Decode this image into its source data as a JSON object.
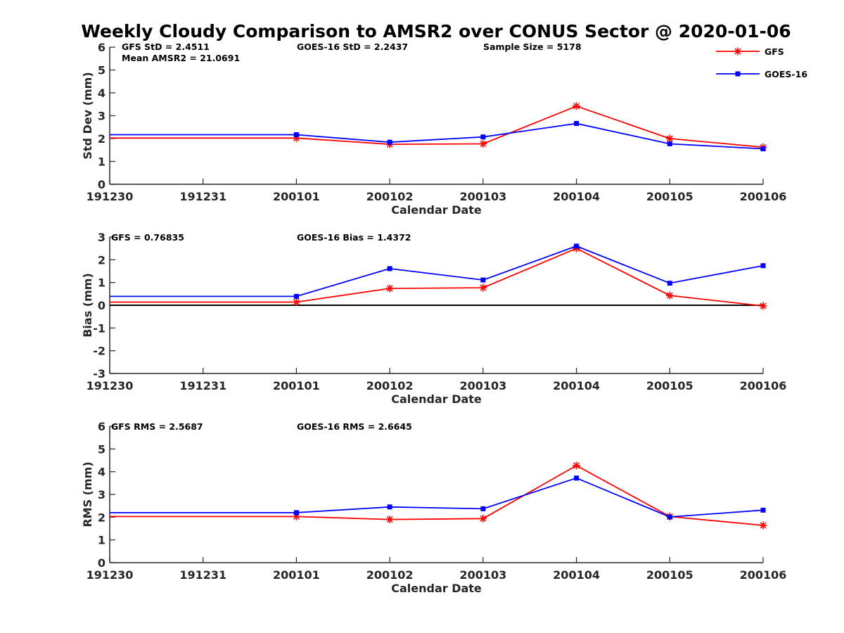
{
  "title": "Weekly Cloudy Comparison to AMSR2 over CONUS Sector @ 2020-01-06",
  "legend": {
    "position": "top-right",
    "items": [
      {
        "label": "GFS",
        "color": "#ff0000",
        "marker": "asterisk"
      },
      {
        "label": "GOES-16",
        "color": "#0000ff",
        "marker": "square"
      }
    ]
  },
  "chart_data": [
    {
      "type": "line",
      "ylabel": "Std Dev (mm)",
      "xlabel": "Calendar Date",
      "categories": [
        "191230",
        "191231",
        "200101",
        "200102",
        "200103",
        "200104",
        "200105",
        "200106"
      ],
      "ylim": [
        0,
        6
      ],
      "yticks": [
        "0",
        "1",
        "2",
        "3",
        "4",
        "5",
        "6"
      ],
      "annotations": [
        "GFS StD = 2.4511",
        "GOES-16 StD = 2.2437",
        "Sample Size = 5178",
        "Mean AMSR2 = 21.0691"
      ],
      "series": [
        {
          "name": "GFS",
          "color": "#ff0000",
          "x": [
            191230,
            200101,
            200102,
            200103,
            200104,
            200105,
            200106
          ],
          "values": [
            2.02,
            2.02,
            1.75,
            1.77,
            3.42,
            2.0,
            1.62
          ]
        },
        {
          "name": "GOES-16",
          "color": "#0000ff",
          "x": [
            191230,
            200101,
            200102,
            200103,
            200104,
            200105,
            200106
          ],
          "values": [
            2.17,
            2.17,
            1.84,
            2.07,
            2.66,
            1.77,
            1.55
          ]
        }
      ]
    },
    {
      "type": "line",
      "ylabel": "Bias (mm)",
      "xlabel": "Calendar Date",
      "categories": [
        "191230",
        "191231",
        "200101",
        "200102",
        "200103",
        "200104",
        "200105",
        "200106"
      ],
      "ylim": [
        -3,
        3
      ],
      "yticks": [
        "-3",
        "-2",
        "-1",
        "0",
        "1",
        "2",
        "3"
      ],
      "zero_line": true,
      "annotations": [
        "GFS = 0.76835",
        "GOES-16 Bias  = 1.4372"
      ],
      "series": [
        {
          "name": "GFS",
          "color": "#ff0000",
          "x": [
            191230,
            200101,
            200102,
            200103,
            200104,
            200105,
            200106
          ],
          "values": [
            0.14,
            0.14,
            0.74,
            0.77,
            2.5,
            0.43,
            -0.03
          ]
        },
        {
          "name": "GOES-16",
          "color": "#0000ff",
          "x": [
            191230,
            200101,
            200102,
            200103,
            200104,
            200105,
            200106
          ],
          "values": [
            0.39,
            0.39,
            1.61,
            1.11,
            2.6,
            0.97,
            1.74
          ]
        }
      ]
    },
    {
      "type": "line",
      "ylabel": "RMS (mm)",
      "xlabel": "Calendar Date",
      "categories": [
        "191230",
        "191231",
        "200101",
        "200102",
        "200103",
        "200104",
        "200105",
        "200106"
      ],
      "ylim": [
        0,
        6
      ],
      "yticks": [
        "0",
        "1",
        "2",
        "3",
        "4",
        "5",
        "6"
      ],
      "annotations": [
        "GFS RMS = 2.5687",
        "GOES-16 RMS = 2.6645"
      ],
      "series": [
        {
          "name": "GFS",
          "color": "#ff0000",
          "x": [
            191230,
            200101,
            200102,
            200103,
            200104,
            200105,
            200106
          ],
          "values": [
            2.03,
            2.03,
            1.9,
            1.94,
            4.27,
            2.03,
            1.64
          ]
        },
        {
          "name": "GOES-16",
          "color": "#0000ff",
          "x": [
            191230,
            200101,
            200102,
            200103,
            200104,
            200105,
            200106
          ],
          "values": [
            2.2,
            2.2,
            2.45,
            2.37,
            3.72,
            2.01,
            2.31
          ]
        }
      ]
    }
  ]
}
